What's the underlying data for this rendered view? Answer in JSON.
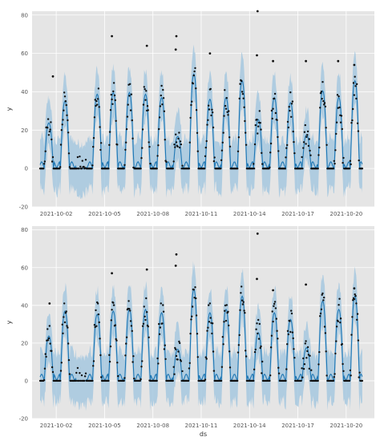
{
  "chart_data": [
    {
      "type": "line",
      "title": "",
      "xlabel": "",
      "ylabel": "y",
      "xlim": [
        "2021-09-30T12:00",
        "2021-10-21T18:00"
      ],
      "ylim": [
        -20,
        82
      ],
      "yticks": [
        -20,
        0,
        20,
        40,
        60,
        80
      ],
      "xticks": [
        "2021-10-02",
        "2021-10-05",
        "2021-10-08",
        "2021-10-11",
        "2021-10-14",
        "2021-10-17",
        "2021-10-20"
      ],
      "grid": true,
      "series": [
        {
          "kind": "line",
          "values": "daily peaks forecast (yhat)",
          "color": "#1f77b4"
        }
      ],
      "forecast_start": "2021-10-01T00:00",
      "forecast_hours": 480,
      "daily_peaks": [
        27,
        40,
        0,
        44,
        45,
        45,
        44,
        42,
        19,
        56,
        41,
        42,
        52,
        29,
        42,
        39,
        20,
        46,
        42,
        52,
        50
      ],
      "band_color": "#a6c8df",
      "point_color": "#111111",
      "outliers": [
        {
          "x": "2021-10-01T19:00",
          "y": 48
        },
        {
          "x": "2021-10-05T11:00",
          "y": 69
        },
        {
          "x": "2021-10-07T15:00",
          "y": 64
        },
        {
          "x": "2021-10-09T11:00",
          "y": 69
        },
        {
          "x": "2021-10-09T10:00",
          "y": 62
        },
        {
          "x": "2021-10-11T13:00",
          "y": 60
        },
        {
          "x": "2021-10-14T12:00",
          "y": 82
        },
        {
          "x": "2021-10-14T11:00",
          "y": 59
        },
        {
          "x": "2021-10-15T11:00",
          "y": 56
        },
        {
          "x": "2021-10-17T12:00",
          "y": 56
        },
        {
          "x": "2021-10-19T12:00",
          "y": 56
        },
        {
          "x": "2021-10-20T12:00",
          "y": 54
        }
      ]
    },
    {
      "type": "line",
      "title": "",
      "xlabel": "ds",
      "ylabel": "y",
      "xlim": [
        "2021-09-30T12:00",
        "2021-10-21T18:00"
      ],
      "ylim": [
        -20,
        82
      ],
      "yticks": [
        -20,
        0,
        20,
        40,
        60,
        80
      ],
      "xticks": [
        "2021-10-02",
        "2021-10-05",
        "2021-10-08",
        "2021-10-11",
        "2021-10-14",
        "2021-10-17",
        "2021-10-20"
      ],
      "grid": true,
      "series": [
        {
          "kind": "line",
          "values": "daily peaks forecast (yhat)",
          "color": "#1f77b4"
        }
      ],
      "forecast_start": "2021-10-01T00:00",
      "forecast_hours": 480,
      "daily_peaks": [
        27,
        42,
        0,
        40,
        42,
        43,
        43,
        41,
        19,
        55,
        41,
        43,
        51,
        29,
        41,
        37,
        20,
        48,
        43,
        51,
        48
      ],
      "band_color": "#a6c8df",
      "point_color": "#111111",
      "outliers": [
        {
          "x": "2021-10-01T14:00",
          "y": 41
        },
        {
          "x": "2021-10-05T11:00",
          "y": 57
        },
        {
          "x": "2021-10-07T15:00",
          "y": 59
        },
        {
          "x": "2021-10-09T11:00",
          "y": 67
        },
        {
          "x": "2021-10-09T10:00",
          "y": 61
        },
        {
          "x": "2021-10-14T12:00",
          "y": 78
        },
        {
          "x": "2021-10-14T11:00",
          "y": 54
        },
        {
          "x": "2021-10-15T11:00",
          "y": 48
        },
        {
          "x": "2021-10-17T12:00",
          "y": 51
        },
        {
          "x": "2021-10-20T12:00",
          "y": 49
        }
      ]
    }
  ]
}
